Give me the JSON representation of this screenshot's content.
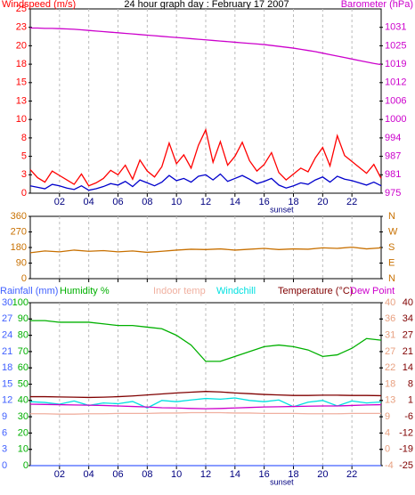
{
  "chart_data": [
    {
      "type": "line",
      "title": "24 hour graph day : February 17 2007",
      "annotations": [
        {
          "text": "sunset",
          "x": 17.2
        }
      ],
      "xlim": [
        0,
        24
      ],
      "xticks": [
        {
          "value": 2,
          "label": "02"
        },
        {
          "value": 4,
          "label": "04"
        },
        {
          "value": 6,
          "label": "06"
        },
        {
          "value": 8,
          "label": "08"
        },
        {
          "value": 10,
          "label": "10"
        },
        {
          "value": 12,
          "label": "12"
        },
        {
          "value": 14,
          "label": "14"
        },
        {
          "value": 16,
          "label": "16"
        },
        {
          "value": 18,
          "label": "18"
        },
        {
          "value": 20,
          "label": "20"
        },
        {
          "value": 22,
          "label": "22"
        }
      ],
      "show_xtick_labels": true,
      "grid": true,
      "axes": {
        "y": {
          "label": "Windspeed (m/s)",
          "color": "#ff0000",
          "lim": [
            0,
            25
          ],
          "ticks": [
            0,
            {
              "value": 2.5,
              "label": "3"
            },
            5,
            {
              "value": 7.5,
              "label": "8"
            },
            10,
            {
              "value": 12.5,
              "label": "13"
            },
            15,
            {
              "value": 17.5,
              "label": "18"
            },
            20,
            {
              "value": 22.5,
              "label": "23"
            },
            25
          ]
        },
        "y2": {
          "label": "Barometer (hPa)",
          "color": "#cc00cc",
          "lim": [
            975,
            1037.5
          ],
          "ticks": [
            975,
            {
              "value": 981.25,
              "label": "981"
            },
            {
              "value": 987.5,
              "label": "987"
            },
            {
              "value": 993.75,
              "label": "994"
            },
            1000,
            {
              "value": 1006.25,
              "label": "1006"
            },
            {
              "value": 1012.5,
              "label": "1012"
            },
            {
              "value": 1018.75,
              "label": "1019"
            },
            1025,
            {
              "value": 1031.25,
              "label": "1031"
            }
          ]
        }
      },
      "x": [
        0,
        0.5,
        1,
        1.5,
        2,
        2.5,
        3,
        3.5,
        4,
        4.5,
        5,
        5.5,
        6,
        6.5,
        7,
        7.5,
        8,
        8.5,
        9,
        9.5,
        10,
        10.5,
        11,
        11.5,
        12,
        12.5,
        13,
        13.5,
        14,
        14.5,
        15,
        15.5,
        16,
        16.5,
        17,
        17.5,
        18,
        18.5,
        19,
        19.5,
        20,
        20.5,
        21,
        21.5,
        22,
        22.5,
        23,
        23.5,
        24
      ],
      "series": [
        {
          "color": "#ff0000",
          "axis": "y",
          "values": [
            3.2,
            2.1,
            1.5,
            3.0,
            2.4,
            1.8,
            1.2,
            2.6,
            1.0,
            1.4,
            2.0,
            3.1,
            2.5,
            3.8,
            1.9,
            4.5,
            3.0,
            2.2,
            3.6,
            6.8,
            4.0,
            5.2,
            3.4,
            6.5,
            8.6,
            4.2,
            7.0,
            3.8,
            5.0,
            6.9,
            4.4,
            3.0,
            3.9,
            5.5,
            2.8,
            1.8,
            2.6,
            3.4,
            2.9,
            4.8,
            6.2,
            3.7,
            7.8,
            5.1,
            4.3,
            3.5,
            2.7,
            3.9,
            2.0
          ]
        },
        {
          "color": "#0000cc",
          "axis": "y",
          "values": [
            1.0,
            0.8,
            0.6,
            1.2,
            1.0,
            0.7,
            0.5,
            1.0,
            0.4,
            0.6,
            0.9,
            1.3,
            1.1,
            1.6,
            0.9,
            1.8,
            1.4,
            1.0,
            1.5,
            2.4,
            1.7,
            2.0,
            1.5,
            2.3,
            2.5,
            1.8,
            2.6,
            1.6,
            2.0,
            2.4,
            1.9,
            1.3,
            1.6,
            2.0,
            1.1,
            0.7,
            1.0,
            1.4,
            1.2,
            1.8,
            2.2,
            1.5,
            2.3,
            1.9,
            1.7,
            1.4,
            1.1,
            1.5,
            1.0
          ]
        },
        {
          "color": "#cc00cc",
          "axis": "y2",
          "values": [
            1031.0,
            1031.0,
            1030.9,
            1030.9,
            1030.8,
            1030.7,
            1030.6,
            1030.4,
            1030.2,
            1030.0,
            1029.8,
            1029.6,
            1029.4,
            1029.2,
            1029.0,
            1028.8,
            1028.6,
            1028.4,
            1028.2,
            1028.0,
            1027.8,
            1027.6,
            1027.4,
            1027.2,
            1027.0,
            1026.8,
            1026.6,
            1026.4,
            1026.2,
            1026.0,
            1025.8,
            1025.6,
            1025.4,
            1025.1,
            1024.8,
            1024.5,
            1024.2,
            1023.8,
            1023.4,
            1023.0,
            1022.5,
            1022.0,
            1021.5,
            1021.0,
            1020.5,
            1020.0,
            1019.5,
            1019.0,
            1018.6
          ]
        }
      ]
    },
    {
      "type": "line",
      "xlim": [
        0,
        24
      ],
      "xticks": [
        2,
        4,
        6,
        8,
        10,
        12,
        14,
        16,
        18,
        20,
        22
      ],
      "show_xtick_labels": false,
      "grid": true,
      "axes": {
        "y": {
          "color": "#c87000",
          "lim": [
            0,
            360
          ],
          "ticks": [
            0,
            90,
            180,
            270,
            360
          ]
        },
        "y2": {
          "color": "#c87000",
          "lim": [
            0,
            360
          ],
          "ticks": [
            {
              "value": 0,
              "label": "N"
            },
            {
              "value": 90,
              "label": "E"
            },
            {
              "value": 180,
              "label": "S"
            },
            {
              "value": 270,
              "label": "W"
            },
            {
              "value": 360,
              "label": "N"
            }
          ]
        }
      },
      "x": [
        0,
        1,
        2,
        3,
        4,
        5,
        6,
        7,
        8,
        9,
        10,
        11,
        12,
        13,
        14,
        15,
        16,
        17,
        18,
        19,
        20,
        21,
        22,
        23,
        24
      ],
      "series": [
        {
          "color": "#c87000",
          "axis": "y",
          "values": [
            150,
            160,
            155,
            165,
            158,
            162,
            155,
            160,
            152,
            158,
            165,
            170,
            168,
            172,
            165,
            170,
            175,
            168,
            172,
            170,
            178,
            175,
            182,
            172,
            178
          ]
        }
      ]
    },
    {
      "type": "line",
      "annotations": [
        {
          "text": "sunset",
          "x": 17.2
        }
      ],
      "xlim": [
        0,
        24
      ],
      "xticks": [
        {
          "value": 2,
          "label": "02"
        },
        {
          "value": 4,
          "label": "04"
        },
        {
          "value": 6,
          "label": "06"
        },
        {
          "value": 8,
          "label": "08"
        },
        {
          "value": 10,
          "label": "10"
        },
        {
          "value": 12,
          "label": "12"
        },
        {
          "value": 14,
          "label": "14"
        },
        {
          "value": 16,
          "label": "16"
        },
        {
          "value": 18,
          "label": "18"
        },
        {
          "value": 20,
          "label": "20"
        },
        {
          "value": 22,
          "label": "22"
        }
      ],
      "show_xtick_labels": true,
      "grid": true,
      "axes": {
        "y": {
          "color": "#4060ff",
          "lim": [
            0,
            30
          ],
          "ticks": [
            0,
            3,
            6,
            9,
            12,
            15,
            18,
            21,
            24,
            27,
            30
          ]
        },
        "y3": {
          "color": "#00b000",
          "lim": [
            0,
            100
          ],
          "ticks": [
            0,
            10,
            20,
            30,
            40,
            50,
            60,
            70,
            80,
            90,
            100
          ]
        },
        "y4": {
          "color": "#e8a080",
          "lim": [
            -4.44,
            40
          ],
          "ticks": [
            {
              "value": -4.44,
              "label": "-4"
            },
            0,
            {
              "value": 4.44,
              "label": "4"
            },
            {
              "value": 8.89,
              "label": "9"
            },
            {
              "value": 13.33,
              "label": "13"
            },
            {
              "value": 17.78,
              "label": "18"
            },
            {
              "value": 22.22,
              "label": "22"
            },
            {
              "value": 26.67,
              "label": "27"
            },
            {
              "value": 31.11,
              "label": "31"
            },
            {
              "value": 35.56,
              "label": "36"
            },
            40
          ]
        },
        "y2": {
          "color": "#800000",
          "lim": [
            -25,
            40
          ],
          "ticks": [
            -25,
            {
              "value": -18.5,
              "label": "-19"
            },
            -12,
            {
              "value": -5.5,
              "label": "-6"
            },
            1,
            {
              "value": 7.5,
              "label": "8"
            },
            14,
            {
              "value": 20.5,
              "label": "21"
            },
            27,
            {
              "value": 33.5,
              "label": "34"
            },
            40
          ]
        }
      },
      "x": [
        0,
        1,
        2,
        3,
        4,
        5,
        6,
        7,
        8,
        9,
        10,
        11,
        12,
        13,
        14,
        15,
        16,
        17,
        18,
        19,
        20,
        21,
        22,
        23,
        24
      ],
      "series": [
        {
          "name": "Rainfall (mm)",
          "color": "#4060ff",
          "axis": "y",
          "values": [
            0,
            0,
            0,
            0,
            0,
            0,
            0,
            0,
            0,
            0,
            0,
            0,
            0,
            0,
            0,
            0,
            0,
            0,
            0,
            0,
            0,
            0,
            0,
            0,
            0
          ]
        },
        {
          "name": "Humidity %",
          "color": "#00b000",
          "axis": "y3",
          "values": [
            89,
            89,
            88,
            88,
            88,
            87,
            86,
            86,
            85,
            84,
            80,
            74,
            64,
            64,
            67,
            70,
            73,
            74,
            73,
            71,
            67,
            68,
            72,
            78,
            77
          ]
        },
        {
          "name": "Indoor temp",
          "color": "#f0b0a0",
          "axis": "y4",
          "values": [
            9.7,
            9.7,
            9.6,
            9.6,
            9.7,
            9.7,
            9.8,
            9.8,
            9.8,
            9.9,
            9.9,
            10.0,
            10.0,
            10.0,
            9.9,
            9.9,
            9.8,
            9.8,
            9.8,
            9.7,
            9.7,
            9.7,
            9.8,
            9.8,
            9.8
          ]
        },
        {
          "name": "Windchill",
          "color": "#00e0e0",
          "axis": "y2",
          "values": [
            0.5,
            0.2,
            -0.5,
            0.8,
            -1.0,
            0.0,
            -0.3,
            0.6,
            -2.0,
            1.0,
            0.5,
            1.2,
            1.8,
            1.5,
            2.0,
            1.0,
            0.5,
            1.2,
            -1.5,
            0.3,
            1.0,
            -1.2,
            0.8,
            0.0,
            0.4
          ]
        },
        {
          "name": "Temperature (°C)",
          "color": "#800000",
          "axis": "y2",
          "values": [
            2.5,
            2.5,
            2.4,
            2.3,
            2.2,
            2.3,
            2.5,
            2.8,
            3.2,
            3.6,
            4.0,
            4.3,
            4.6,
            4.4,
            4.0,
            3.7,
            3.4,
            3.2,
            3.0,
            3.0,
            3.1,
            3.1,
            3.0,
            3.0,
            2.9
          ]
        },
        {
          "name": "Dew Point",
          "color": "#cc00cc",
          "axis": "y2",
          "values": [
            -0.5,
            -0.6,
            -0.7,
            -0.8,
            -0.9,
            -1.0,
            -1.2,
            -1.4,
            -1.6,
            -1.9,
            -2.0,
            -2.2,
            -2.3,
            -2.2,
            -2.0,
            -1.8,
            -1.6,
            -1.5,
            -1.4,
            -1.3,
            -1.2,
            -1.2,
            -1.0,
            -0.8,
            -0.7
          ]
        }
      ]
    }
  ]
}
